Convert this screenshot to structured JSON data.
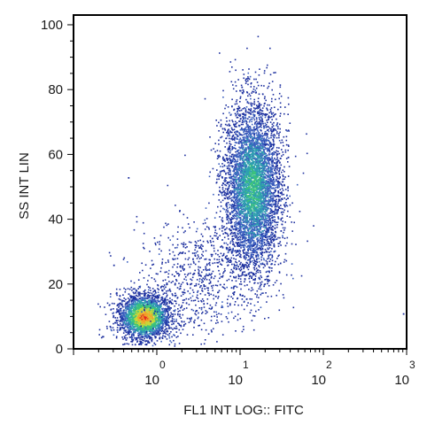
{
  "chart_data": {
    "type": "scatter",
    "subtype": "density-dot-plot",
    "xlabel": "FL1 INT LOG:: FITC",
    "ylabel": "SS INT LIN",
    "xscale": "log",
    "xlim": [
      0.1,
      1000
    ],
    "ylim": [
      0,
      103
    ],
    "x_tick_labels": [
      {
        "base": "10",
        "exp": "0",
        "value": 1
      },
      {
        "base": "10",
        "exp": "1",
        "value": 10
      },
      {
        "base": "10",
        "exp": "2",
        "value": 100
      },
      {
        "base": "10",
        "exp": "3",
        "value": 1000
      }
    ],
    "y_ticks": [
      0,
      20,
      40,
      60,
      80,
      100
    ],
    "grid": false,
    "legend": "none",
    "density_colors": [
      "#1c2f9e",
      "#3a5fbf",
      "#2e9fb0",
      "#3cc47a",
      "#c7d83a",
      "#f2a12b",
      "#e3261f"
    ],
    "populations": [
      {
        "label": "",
        "x_center": 0.7,
        "y_center": 10,
        "x_log_spread": 0.16,
        "y_spread": 3.5,
        "count": 2600,
        "peak_color": "#e3261f"
      },
      {
        "label": "",
        "x_center": 14,
        "y_center": 50,
        "x_log_spread": 0.17,
        "y_spread": 13,
        "count": 5200,
        "peak_color": "#3cc47a"
      },
      {
        "label": "",
        "x_center": 3,
        "y_center": 22,
        "x_log_spread": 0.35,
        "y_spread": 9,
        "count": 700,
        "peak_color": "#1c2f9e"
      }
    ],
    "outliers": [
      {
        "x": 0.45,
        "y": 53
      },
      {
        "x": 0.3,
        "y": 26
      },
      {
        "x": 900,
        "y": 11
      },
      {
        "x": 0.22,
        "y": 4
      }
    ]
  }
}
